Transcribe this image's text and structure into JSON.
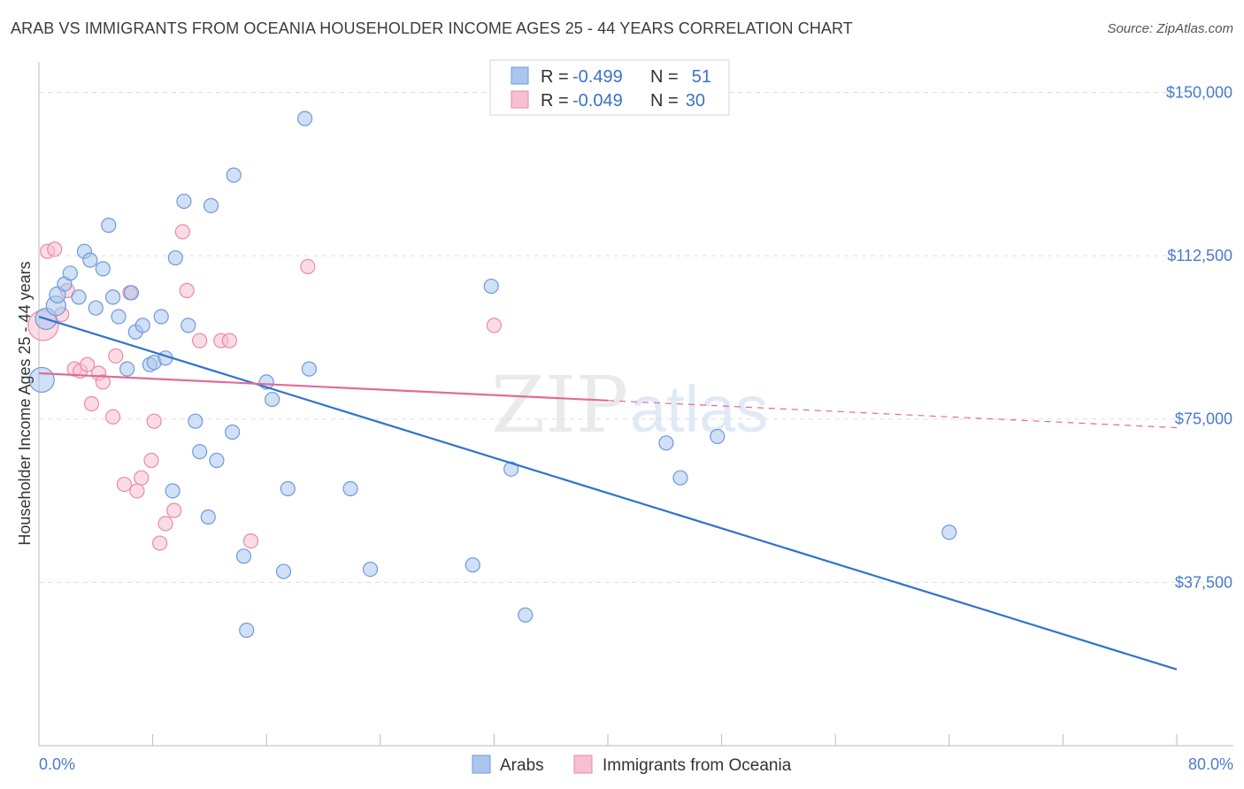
{
  "title": "ARAB VS IMMIGRANTS FROM OCEANIA HOUSEHOLDER INCOME AGES 25 - 44 YEARS CORRELATION CHART",
  "source": "Source: ZipAtlas.com",
  "watermark": {
    "zip": "ZIP",
    "atlas": "atlas"
  },
  "colors": {
    "arabs_fill": "#a9c6ee",
    "arabs_stroke": "#6f9ad8",
    "arabs_line": "#2f72d1",
    "oceania_fill": "#f7bfd0",
    "oceania_stroke": "#ea8aa9",
    "oceania_line": "#e26b96",
    "grid": "#dddddd",
    "tick_text": "#4a7cc9"
  },
  "legend": {
    "rows": [
      {
        "r_label": "R =",
        "r_value": "-0.499",
        "n_label": "N =",
        "n_value": "51"
      },
      {
        "r_label": "R =",
        "r_value": "-0.049",
        "n_label": "N =",
        "n_value": "30"
      }
    ]
  },
  "bottom_legend": [
    "Arabs",
    "Immigrants from Oceania"
  ],
  "chart_data": {
    "type": "scatter",
    "title": "ARAB VS IMMIGRANTS FROM OCEANIA HOUSEHOLDER INCOME AGES 25 - 44 YEARS CORRELATION CHART",
    "xlabel": "",
    "ylabel": "Householder Income Ages 25 - 44 years",
    "xlim": [
      0,
      80
    ],
    "ylim": [
      0,
      157000
    ],
    "x_tick_labels": [
      "0.0%",
      "80.0%"
    ],
    "y_ticks": [
      37500,
      75000,
      112500,
      150000
    ],
    "y_tick_labels": [
      "$37,500",
      "$75,000",
      "$112,500",
      "$150,000"
    ],
    "grid": true,
    "legend_placement": "top-center",
    "series": [
      {
        "name": "Arabs",
        "R": -0.499,
        "N": 51,
        "trend": {
          "x": [
            0,
            80
          ],
          "y": [
            98500,
            17500
          ],
          "dashed_from": null
        },
        "points": [
          [
            0.2,
            84000,
            28
          ],
          [
            0.5,
            98000,
            24
          ],
          [
            1.2,
            101000,
            22
          ],
          [
            1.3,
            103500,
            18
          ],
          [
            1.8,
            106000,
            16
          ],
          [
            2.2,
            108500,
            16
          ],
          [
            2.8,
            103000,
            16
          ],
          [
            3.2,
            113500,
            16
          ],
          [
            3.6,
            111500,
            16
          ],
          [
            4.0,
            100500,
            16
          ],
          [
            4.5,
            109500,
            16
          ],
          [
            4.9,
            119500,
            16
          ],
          [
            5.2,
            103000,
            16
          ],
          [
            5.6,
            98500,
            16
          ],
          [
            6.2,
            86500,
            16
          ],
          [
            6.5,
            104000,
            16
          ],
          [
            6.8,
            95000,
            16
          ],
          [
            7.3,
            96500,
            16
          ],
          [
            7.8,
            87500,
            16
          ],
          [
            8.1,
            88000,
            16
          ],
          [
            8.6,
            98500,
            16
          ],
          [
            8.9,
            89000,
            16
          ],
          [
            9.4,
            58500,
            16
          ],
          [
            9.6,
            112000,
            16
          ],
          [
            10.2,
            125000,
            16
          ],
          [
            10.5,
            96500,
            16
          ],
          [
            11.0,
            74500,
            16
          ],
          [
            11.3,
            67500,
            16
          ],
          [
            11.9,
            52500,
            16
          ],
          [
            12.1,
            124000,
            16
          ],
          [
            12.5,
            65500,
            16
          ],
          [
            13.6,
            72000,
            16
          ],
          [
            13.7,
            131000,
            16
          ],
          [
            14.4,
            43500,
            16
          ],
          [
            14.6,
            26500,
            16
          ],
          [
            16.0,
            83500,
            16
          ],
          [
            16.4,
            79500,
            16
          ],
          [
            17.2,
            40000,
            16
          ],
          [
            17.5,
            59000,
            16
          ],
          [
            18.7,
            144000,
            16
          ],
          [
            19.0,
            86500,
            16
          ],
          [
            21.9,
            59000,
            16
          ],
          [
            23.3,
            40500,
            16
          ],
          [
            30.5,
            41500,
            16
          ],
          [
            31.8,
            105500,
            16
          ],
          [
            33.2,
            63500,
            16
          ],
          [
            34.2,
            30000,
            16
          ],
          [
            44.1,
            69500,
            16
          ],
          [
            45.1,
            61500,
            16
          ],
          [
            47.7,
            71000,
            16
          ],
          [
            64.0,
            49000,
            16
          ]
        ]
      },
      {
        "name": "Immigrants from Oceania",
        "R": -0.049,
        "N": 30,
        "trend": {
          "x": [
            0,
            80
          ],
          "y": [
            85500,
            73000
          ],
          "solid_until": 40
        },
        "points": [
          [
            0.3,
            96500,
            34
          ],
          [
            0.6,
            113500,
            16
          ],
          [
            1.1,
            114000,
            16
          ],
          [
            1.6,
            99000,
            16
          ],
          [
            2.0,
            104500,
            16
          ],
          [
            2.5,
            86500,
            16
          ],
          [
            2.9,
            86000,
            16
          ],
          [
            3.4,
            87500,
            16
          ],
          [
            3.7,
            78500,
            16
          ],
          [
            4.2,
            85500,
            16
          ],
          [
            4.5,
            83500,
            16
          ],
          [
            5.2,
            75500,
            16
          ],
          [
            5.4,
            89500,
            16
          ],
          [
            6.0,
            60000,
            16
          ],
          [
            6.4,
            104000,
            16
          ],
          [
            6.9,
            58500,
            16
          ],
          [
            7.2,
            61500,
            16
          ],
          [
            7.9,
            65500,
            16
          ],
          [
            8.1,
            74500,
            16
          ],
          [
            8.5,
            46500,
            16
          ],
          [
            8.9,
            51000,
            16
          ],
          [
            9.5,
            54000,
            16
          ],
          [
            10.1,
            118000,
            16
          ],
          [
            10.4,
            104500,
            16
          ],
          [
            11.3,
            93000,
            16
          ],
          [
            12.8,
            93000,
            16
          ],
          [
            13.4,
            93000,
            16
          ],
          [
            14.9,
            47000,
            16
          ],
          [
            18.9,
            110000,
            16
          ],
          [
            32.0,
            96500,
            16
          ]
        ]
      }
    ]
  }
}
